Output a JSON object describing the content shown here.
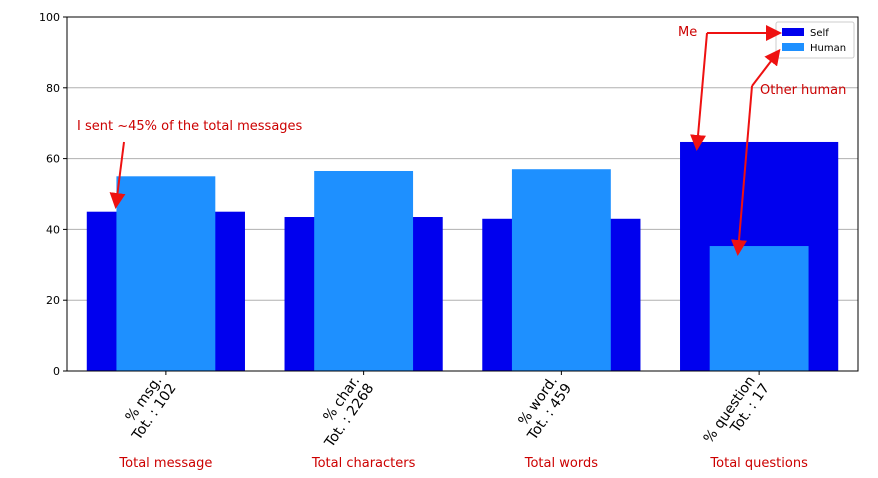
{
  "chart_data": {
    "type": "bar",
    "categories": [
      "% msg.\nTot. : 102",
      "% char.\nTot. : 2268",
      "% word.\nTot. : 459",
      "% question\nTot. : 17"
    ],
    "series": [
      {
        "name": "Self",
        "values": [
          45,
          43.5,
          43,
          64.7
        ]
      },
      {
        "name": "Human",
        "values": [
          55,
          56.5,
          57,
          35.3
        ]
      }
    ],
    "ylim": [
      0,
      100
    ],
    "yticks": [
      0,
      20,
      40,
      60,
      80,
      100
    ],
    "grid": "y",
    "legend": "top-right",
    "annotations": {
      "self_note": "I sent ~45% of the total messages",
      "me_label": "Me",
      "other_label": "Other human",
      "category_captions": [
        "Total message",
        "Total characters",
        "Total words",
        "Total questions"
      ]
    }
  },
  "colors": {
    "self": "#0000ee",
    "human": "#1e90ff",
    "annotation": "#cc0000",
    "arrow": "#ee1111",
    "grid": "#b0b0b0"
  }
}
